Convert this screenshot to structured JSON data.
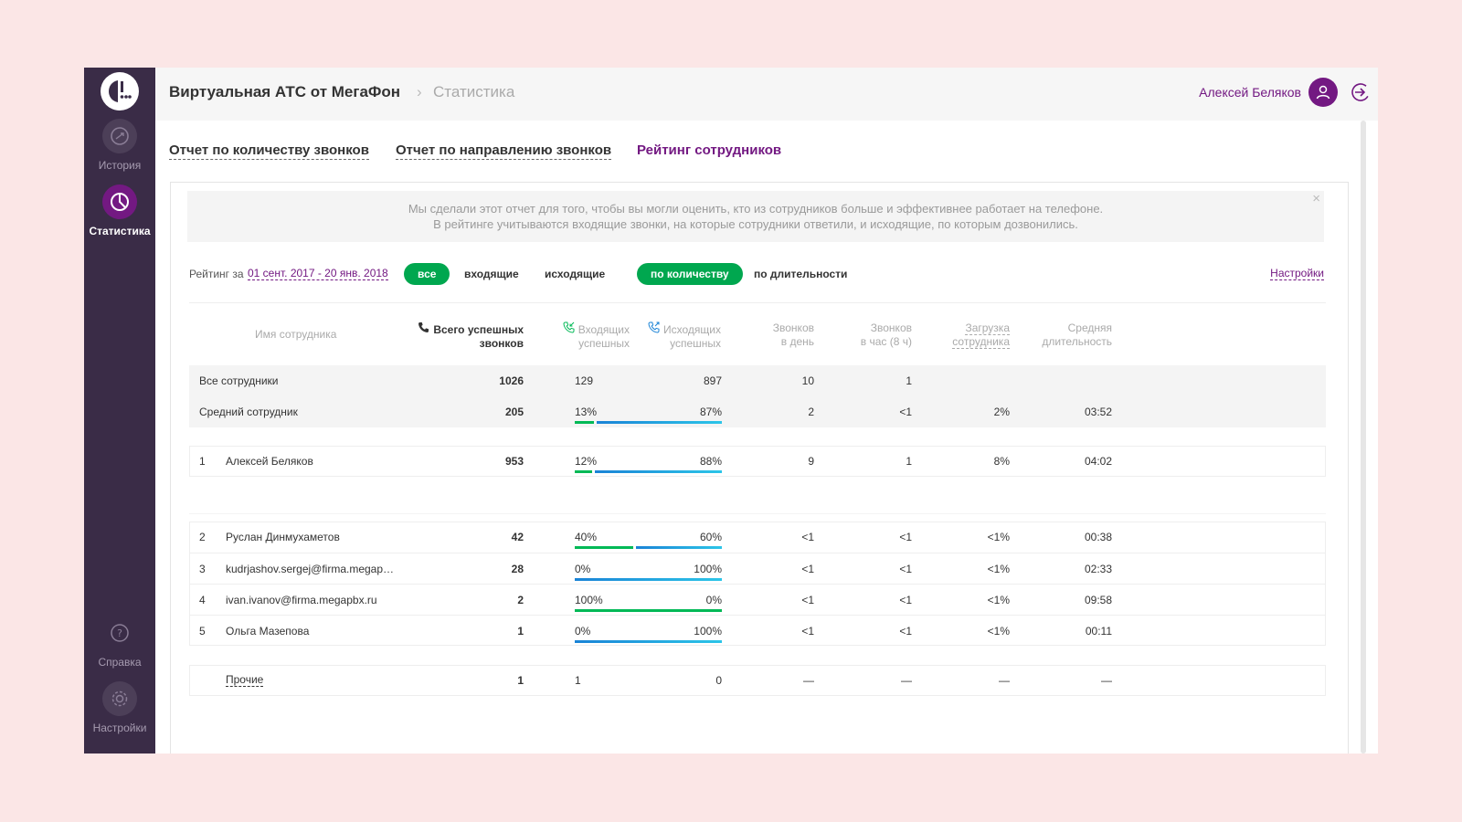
{
  "sidebar": {
    "items": [
      {
        "label": "История",
        "icon": "history-icon"
      },
      {
        "label": "Статистика",
        "icon": "statistics-icon"
      },
      {
        "label": "Справка",
        "icon": "help-icon"
      },
      {
        "label": "Настройки",
        "icon": "settings-icon"
      }
    ]
  },
  "header": {
    "app_title": "Виртуальная АТС от МегаФон",
    "separator": "›",
    "section": "Статистика",
    "user_name": "Алексей Беляков"
  },
  "tabs": [
    {
      "label": "Отчет по количеству звонков",
      "active": false
    },
    {
      "label": "Отчет по направлению звонков",
      "active": false
    },
    {
      "label": "Рейтинг сотрудников",
      "active": true
    }
  ],
  "info": {
    "line1": "Мы сделали этот отчет для того, чтобы вы могли оценить, кто из сотрудников больше и эффективнее работает на телефоне.",
    "line2": "В рейтинге учитываются входящие звонки, на которые сотрудники ответили, и исходящие, по которым дозвонились.",
    "close": "×"
  },
  "filters": {
    "label": "Рейтинг за",
    "date_range": "01 сент. 2017 - 20 янв. 2018",
    "direction": [
      "все",
      "входящие",
      "исходящие"
    ],
    "direction_selected": "все",
    "sort": [
      "по количеству",
      "по длительности"
    ],
    "sort_selected": "по количеству",
    "settings": "Настройки"
  },
  "table": {
    "headers": {
      "name": "Имя сотрудника",
      "total_1": "Всего успешных",
      "total_2": "звонков",
      "in_1": "Входящих",
      "in_2": "успешных",
      "out_1": "Исходящих",
      "out_2": "успешных",
      "perday_1": "Звонков",
      "perday_2": "в день",
      "perhour_1": "Звонков",
      "perhour_2": "в час (8 ч)",
      "load_1": "Загрузка",
      "load_2": "сотрудника",
      "avg_1": "Средняя",
      "avg_2": "длительность"
    },
    "summary": [
      {
        "name": "Все сотрудники",
        "total": "1026",
        "in": "129",
        "out": "897",
        "perday": "10",
        "perhour": "1",
        "load": "",
        "avg": ""
      },
      {
        "name": "Средний сотрудник",
        "total": "205",
        "in": "13%",
        "out": "87%",
        "in_share": 0.13,
        "perday": "2",
        "perhour": "<1",
        "load": "2%",
        "avg": "03:52"
      }
    ],
    "top": {
      "num": "1",
      "name": "Алексей Беляков",
      "total": "953",
      "in": "12%",
      "out": "88%",
      "in_share": 0.12,
      "perday": "9",
      "perhour": "1",
      "load": "8%",
      "avg": "04:02"
    },
    "rows": [
      {
        "num": "2",
        "name": "Руслан Динмухаметов",
        "total": "42",
        "in": "40%",
        "out": "60%",
        "in_share": 0.4,
        "perday": "<1",
        "perhour": "<1",
        "load": "<1%",
        "avg": "00:38"
      },
      {
        "num": "3",
        "name": "kudrjashov.sergej@firma.megap…",
        "total": "28",
        "in": "0%",
        "out": "100%",
        "in_share": 0.0,
        "perday": "<1",
        "perhour": "<1",
        "load": "<1%",
        "avg": "02:33"
      },
      {
        "num": "4",
        "name": "ivan.ivanov@firma.megapbx.ru",
        "total": "2",
        "in": "100%",
        "out": "0%",
        "in_share": 1.0,
        "perday": "<1",
        "perhour": "<1",
        "load": "<1%",
        "avg": "09:58"
      },
      {
        "num": "5",
        "name": "Ольга Мазепова",
        "total": "1",
        "in": "0%",
        "out": "100%",
        "in_share": 0.0,
        "perday": "<1",
        "perhour": "<1",
        "load": "<1%",
        "avg": "00:11"
      }
    ],
    "others": {
      "name": "Прочие",
      "total": "1",
      "in": "1",
      "out": "0",
      "perday": "—",
      "perhour": "—",
      "load": "—",
      "avg": "—"
    }
  },
  "colors": {
    "brand": "#731982",
    "sidebar": "#3a2c47",
    "green": "#00a74f",
    "blue": "#1a83d6"
  }
}
